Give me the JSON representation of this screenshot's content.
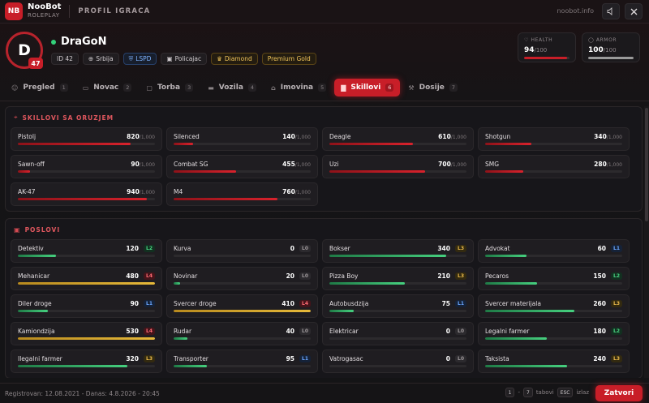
{
  "header": {
    "logo_text": "NB",
    "brand_name": "NooBot",
    "brand_sub": "ROLEPLAY",
    "page_title": "PROFIL IGRACA",
    "site": "noobot.info",
    "mute_icon": "speaker-icon",
    "close_icon": "close-icon"
  },
  "profile": {
    "avatar_letter": "D",
    "level": "47",
    "name": "DraGoN",
    "online": true,
    "chips": [
      {
        "icon": "id-icon",
        "text": "ID 42",
        "style": "default"
      },
      {
        "icon": "globe-icon",
        "text": "Srbija",
        "style": "default"
      },
      {
        "icon": "shield-icon",
        "text": "LSPD",
        "style": "blue"
      },
      {
        "icon": "briefcase-icon",
        "text": "Policajac",
        "style": "default"
      },
      {
        "icon": "crown-icon",
        "text": "Diamond",
        "style": "gold"
      },
      {
        "icon": "",
        "text": "Premium Gold",
        "style": "gold"
      }
    ]
  },
  "stats": [
    {
      "label": "HEALTH",
      "value": "94",
      "max": "/100",
      "fraction": 0.94,
      "color": "#c81e28"
    },
    {
      "label": "ARMOR",
      "value": "100",
      "max": "/100",
      "fraction": 1.0,
      "color": "#9a9a9a"
    }
  ],
  "tabs": [
    {
      "label": "Pregled",
      "count": "1",
      "icon": "user-icon"
    },
    {
      "label": "Novac",
      "count": "2",
      "icon": "wallet-icon"
    },
    {
      "label": "Torba",
      "count": "3",
      "icon": "bag-icon"
    },
    {
      "label": "Vozila",
      "count": "4",
      "icon": "car-icon"
    },
    {
      "label": "Imovina",
      "count": "5",
      "icon": "home-icon"
    },
    {
      "label": "Skillovi",
      "count": "6",
      "icon": "chart-icon",
      "active": true
    },
    {
      "label": "Dosije",
      "count": "7",
      "icon": "gavel-icon"
    }
  ],
  "skills_section": {
    "title": "SKILLOVI SA ORUZJEM",
    "icon": "gun-icon",
    "max_label": "/1,000",
    "items": [
      {
        "name": "Pistolj",
        "value": "820",
        "fraction": 0.82
      },
      {
        "name": "Silenced",
        "value": "140",
        "fraction": 0.14
      },
      {
        "name": "Deagle",
        "value": "610",
        "fraction": 0.61
      },
      {
        "name": "Shotgun",
        "value": "340",
        "fraction": 0.34
      },
      {
        "name": "Sawn-off",
        "value": "90",
        "fraction": 0.09
      },
      {
        "name": "Combat SG",
        "value": "455",
        "fraction": 0.455
      },
      {
        "name": "Uzi",
        "value": "700",
        "fraction": 0.7
      },
      {
        "name": "SMG",
        "value": "280",
        "fraction": 0.28
      },
      {
        "name": "AK-47",
        "value": "940",
        "fraction": 0.94
      },
      {
        "name": "M4",
        "value": "760",
        "fraction": 0.76
      }
    ]
  },
  "jobs_section": {
    "title": "POSLOVI",
    "icon": "briefcase-icon",
    "items": [
      {
        "name": "Detektiv",
        "value": "120",
        "level": "L2",
        "fraction": 0.28
      },
      {
        "name": "Kurva",
        "value": "0",
        "level": "L0",
        "fraction": 0
      },
      {
        "name": "Bokser",
        "value": "340",
        "level": "L3",
        "fraction": 0.85
      },
      {
        "name": "Advokat",
        "value": "60",
        "level": "L1",
        "fraction": 0.3
      },
      {
        "name": "Mehanicar",
        "value": "480",
        "level": "L4",
        "fraction": 1.0
      },
      {
        "name": "Novinar",
        "value": "20",
        "level": "L0",
        "fraction": 0.05
      },
      {
        "name": "Pizza Boy",
        "value": "210",
        "level": "L3",
        "fraction": 0.55
      },
      {
        "name": "Pecaros",
        "value": "150",
        "level": "L2",
        "fraction": 0.38
      },
      {
        "name": "Diler droge",
        "value": "90",
        "level": "L1",
        "fraction": 0.22
      },
      {
        "name": "Svercer droge",
        "value": "410",
        "level": "L4",
        "fraction": 1.0
      },
      {
        "name": "Autobusdzija",
        "value": "75",
        "level": "L1",
        "fraction": 0.18
      },
      {
        "name": "Svercer materijala",
        "value": "260",
        "level": "L3",
        "fraction": 0.65
      },
      {
        "name": "Kamiondzija",
        "value": "530",
        "level": "L4",
        "fraction": 1.0
      },
      {
        "name": "Rudar",
        "value": "40",
        "level": "L0",
        "fraction": 0.1
      },
      {
        "name": "Elektricar",
        "value": "0",
        "level": "L0",
        "fraction": 0
      },
      {
        "name": "Legalni farmer",
        "value": "180",
        "level": "L2",
        "fraction": 0.45
      },
      {
        "name": "Ilegalni farmer",
        "value": "320",
        "level": "L3",
        "fraction": 0.8
      },
      {
        "name": "Transporter",
        "value": "95",
        "level": "L1",
        "fraction": 0.24
      },
      {
        "name": "Vatrogasac",
        "value": "0",
        "level": "L0",
        "fraction": 0
      },
      {
        "name": "Taksista",
        "value": "240",
        "level": "L3",
        "fraction": 0.6
      }
    ]
  },
  "footer": {
    "registered": "Registrovan: 12.08.2021 - Danas: 4.8.2026 - 20:45",
    "key_a": "1",
    "dash": "-",
    "key_b": "7",
    "tabs_label": "tabovi",
    "key_esc": "ESC",
    "exit_label": "izlaz",
    "close_label": "Zatvori"
  },
  "colors": {
    "accent": "#c81e28",
    "L0": "#9d979a",
    "L1": "#6aa6ff",
    "L2": "#49d382",
    "L3": "#e8b84a",
    "L4": "#ff6b74"
  }
}
